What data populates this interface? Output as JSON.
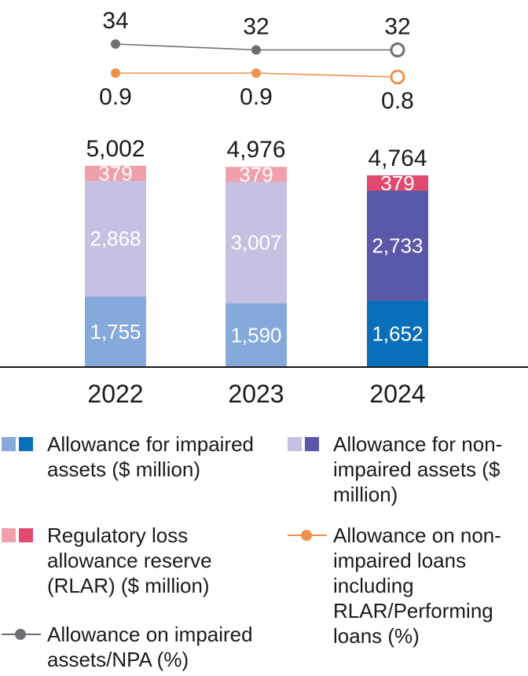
{
  "chart_data": {
    "type": "bar",
    "categories": [
      "2022",
      "2023",
      "2024"
    ],
    "series": [
      {
        "name": "Allowance for impaired assets ($ million)",
        "values": [
          1755,
          1590,
          1652
        ],
        "labels": [
          "1,755",
          "1,590",
          "1,652"
        ],
        "colors": [
          "#86a9dc",
          "#86a9dc",
          "#0a6fba"
        ]
      },
      {
        "name": "Allowance for non-impaired assets ($ million)",
        "values": [
          2868,
          3007,
          2733
        ],
        "labels": [
          "2,868",
          "3,007",
          "2,733"
        ],
        "colors": [
          "#c4c1e2",
          "#c4c1e2",
          "#5a58a8"
        ]
      },
      {
        "name": "Regulatory loss allowance reserve (RLAR) ($ million)",
        "values": [
          379,
          379,
          379
        ],
        "labels": [
          "379",
          "379",
          "379"
        ],
        "colors": [
          "#f0a0ab",
          "#f0a0ab",
          "#e04a6e"
        ]
      }
    ],
    "totals": {
      "values": [
        5002,
        4976,
        4764
      ],
      "labels": [
        "5,002",
        "4,976",
        "4,764"
      ]
    },
    "lines": [
      {
        "name": "Allowance on impaired assets/NPA (%)",
        "values": [
          34,
          32,
          32
        ],
        "labels": [
          "34",
          "32",
          "32"
        ],
        "color": "#6d6e71"
      },
      {
        "name": "Allowance on non-impaired loans including RLAR/Performing loans (%)",
        "values": [
          0.9,
          0.9,
          0.8
        ],
        "labels": [
          "0.9",
          "0.9",
          "0.8"
        ],
        "color": "#f0904a"
      }
    ],
    "stacked": true,
    "grid": false,
    "legend_position": "bottom"
  },
  "legend": {
    "impaired": "Allowance for impaired assets ($ million)",
    "non_impaired": "Allowance for non-impaired assets ($ million)",
    "rlar": "Regulatory loss allowance reserve (RLAR) ($ million)",
    "loans_pct": "Allowance on non-impaired loans including RLAR/Performing loans (%)",
    "npa_pct": "Allowance on impaired assets/NPA (%)"
  },
  "colors": {
    "impaired_light": "#86a9dc",
    "impaired_dark": "#0a6fba",
    "non_impaired_light": "#c4c1e2",
    "non_impaired_dark": "#5a58a8",
    "rlar_light": "#f0a0ab",
    "rlar_dark": "#e04a6e",
    "npa_line": "#6d6e71",
    "loans_line": "#f0904a"
  }
}
